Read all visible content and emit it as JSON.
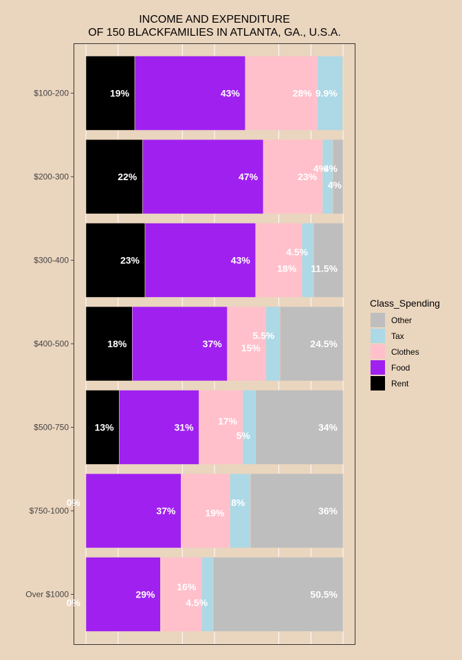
{
  "chart_data": {
    "type": "bar",
    "orientation": "horizontal",
    "stacked": "percent",
    "title_lines": [
      "INCOME AND EXPENDITURE",
      "OF 150 BLACKFAMILIES IN ATLANTA, GA., U.S.A."
    ],
    "legend_title": "Class_Spending",
    "legend_position": "right",
    "categories": [
      "$100-200",
      "$200-300",
      "$300-400",
      "$400-500",
      "$500-750",
      "$750-1000",
      "Over $1000"
    ],
    "series": [
      {
        "name": "Rent",
        "color": "#000000",
        "values": [
          19,
          22,
          23,
          18,
          13,
          0,
          0
        ],
        "labels": [
          "19%",
          "22%",
          "23%",
          "18%",
          "13%",
          "0%",
          "0%"
        ]
      },
      {
        "name": "Food",
        "color": "#A020F0",
        "values": [
          43,
          47,
          43,
          37,
          31,
          37,
          29
        ],
        "labels": [
          "43%",
          "47%",
          "43%",
          "37%",
          "31%",
          "37%",
          "29%"
        ]
      },
      {
        "name": "Clothes",
        "color": "#FFC0CB",
        "values": [
          28,
          23,
          18,
          15,
          17,
          19,
          16
        ],
        "labels": [
          "28%",
          "23%",
          "18%",
          "15%",
          "17%",
          "19%",
          "16%"
        ]
      },
      {
        "name": "Tax",
        "color": "#ADD8E6",
        "values": [
          9.9,
          4,
          4.5,
          5.5,
          5,
          8,
          4.5
        ],
        "labels": [
          "9.9%",
          "4%",
          "4.5%",
          "5.5%",
          "5%",
          "8%",
          "4.5%"
        ]
      },
      {
        "name": "Other",
        "color": "#BEBEBE",
        "values": [
          0.1,
          4,
          11.5,
          24.5,
          34,
          36,
          50.5
        ],
        "labels": [
          "",
          "4%",
          "11.5%",
          "24.5%",
          "34%",
          "36%",
          "50.5%"
        ]
      }
    ],
    "legend_order": [
      "Other",
      "Tax",
      "Clothes",
      "Food",
      "Rent"
    ],
    "xlim": [
      0,
      100
    ],
    "grid": true,
    "x_tick_labels_visible": false
  }
}
